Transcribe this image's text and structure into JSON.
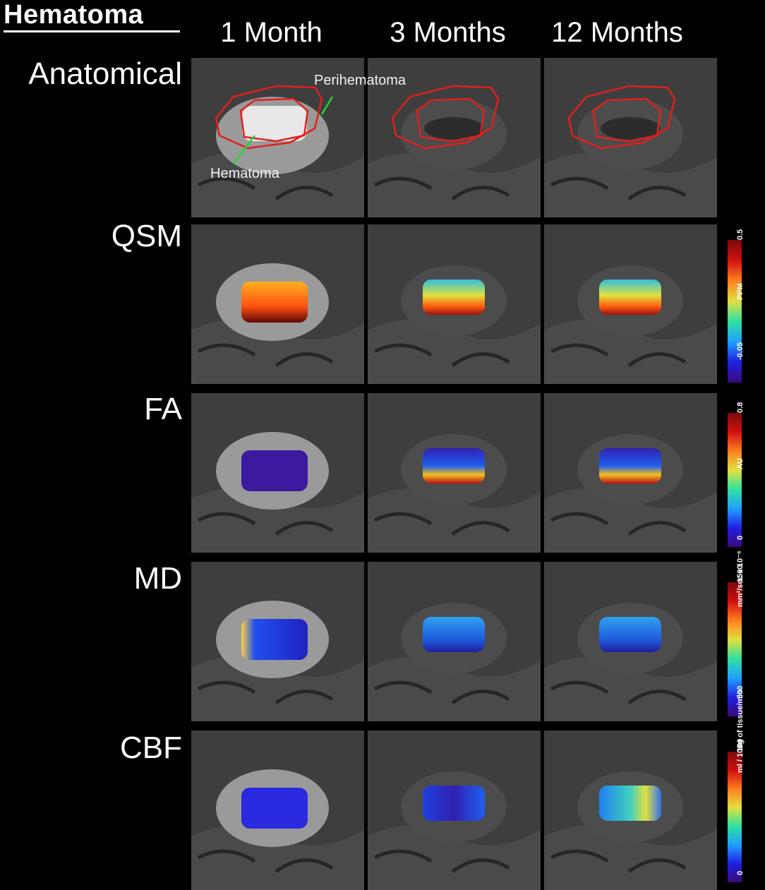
{
  "title": "Hematoma",
  "columns": [
    "1 Month",
    "3 Months",
    "12 Months"
  ],
  "rows": [
    "Anatomical",
    "QSM",
    "FA",
    "MD",
    "CBF"
  ],
  "annotations": {
    "perihematoma": "Perihematoma",
    "hematoma": "Hematoma"
  },
  "colorbars": [
    {
      "max": "0.5",
      "min": "-0.05",
      "unit": "PPM"
    },
    {
      "max": "0.8",
      "min": "0",
      "unit": "AU"
    },
    {
      "max": "1500",
      "min": "500",
      "unit": "mm²/sec x 10⁻⁶"
    },
    {
      "max": "100",
      "min": "0",
      "unit": "ml / 100g of tissue/min"
    }
  ],
  "colors": {
    "outline": "#e0201c",
    "arrow": "#27d23a"
  }
}
